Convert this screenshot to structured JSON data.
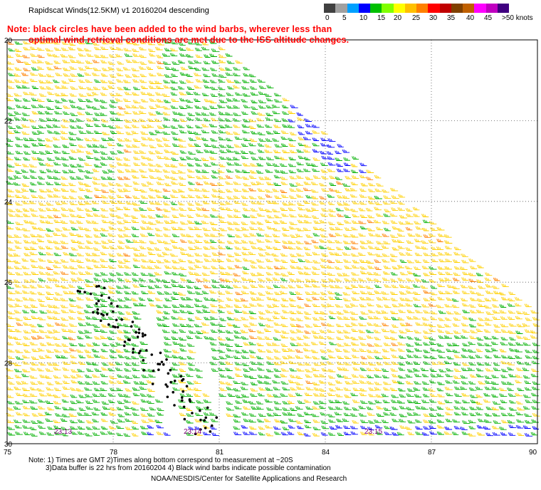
{
  "title": "Rapidscat Winds(12.5KM) v1 20160204 descending",
  "note_line1": "Note: black circles have been added to the wind barbs, wherever less than",
  "note_line2": "optimal wind retrieval conditions are met due to the ISS altitude changes.",
  "colorbar": {
    "colors": [
      "#404040",
      "#a0a0a0",
      "#00a0ff",
      "#0000ff",
      "#00c000",
      "#80ff00",
      "#ffff00",
      "#ffc000",
      "#ff8000",
      "#ff0000",
      "#c00000",
      "#804000",
      "#c06000",
      "#ff00ff",
      "#c000c0",
      "#400080"
    ],
    "labels": [
      "0",
      "5",
      "10",
      "15",
      "20",
      "25",
      "30",
      "35",
      "40",
      "45",
      ">50 knots"
    ]
  },
  "map": {
    "lat_labels": [
      "20",
      "22",
      "24",
      "26",
      "28",
      "30"
    ],
    "lon_labels": [
      "75",
      "78",
      "81",
      "84",
      "87",
      "90"
    ],
    "lat_range": [
      -20,
      -30
    ],
    "lon_range": [
      75,
      90
    ],
    "time_labels": [
      "23:13",
      "23:14",
      "23:15"
    ]
  },
  "footer": {
    "line1": "Note: 1) Times are GMT 2)Times along bottom correspond to measurement at ~20S",
    "line2": "3)Data buffer is 22 hrs from 20160204 4) Black wind barbs indicate possible contamination",
    "line3": "NOAA/NESDIS/Center for Satellite Applications and Research"
  }
}
